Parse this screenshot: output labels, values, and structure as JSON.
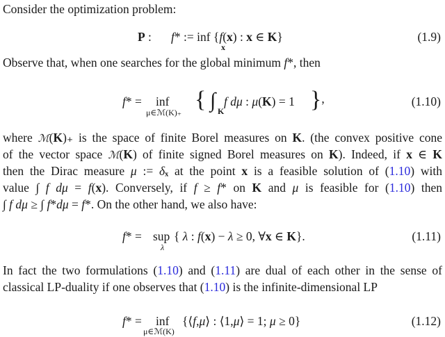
{
  "lines": {
    "l1": [
      [
        "",
        "Consider the optimization problem:"
      ]
    ],
    "l2": [
      [
        "",
        "Observe that, when one searches for the global minimum "
      ],
      [
        "i",
        "f"
      ],
      [
        "",
        "*, then"
      ]
    ],
    "p1": [
      [
        [
          "",
          "where "
        ],
        [
          "cal",
          "ℳ"
        ],
        [
          "",
          "("
        ],
        [
          "b",
          "K"
        ],
        [
          "",
          ")"
        ],
        [
          "",
          "₊ is the space of finite Borel measures on "
        ],
        [
          "b",
          "K"
        ],
        [
          "",
          ". (the convex positive cone"
        ]
      ],
      [
        [
          "",
          "of the vector space "
        ],
        [
          "cal",
          "ℳ"
        ],
        [
          "",
          "("
        ],
        [
          "b",
          "K"
        ],
        [
          "",
          ") of finite signed Borel measures on "
        ],
        [
          "b",
          "K"
        ],
        [
          "",
          "). Indeed, if "
        ],
        [
          "b",
          "x"
        ],
        [
          "",
          " ∈ "
        ],
        [
          "b",
          "K"
        ]
      ],
      [
        [
          "",
          "then the Dirac measure "
        ],
        [
          "i",
          "μ"
        ],
        [
          "",
          " := "
        ],
        [
          "i",
          "δ"
        ],
        [
          "b",
          "ₓ"
        ],
        [
          "",
          " at the point "
        ],
        [
          "b",
          "x"
        ],
        [
          "",
          " is a feasible solution of ("
        ],
        [
          "link",
          "1.10"
        ],
        [
          "",
          ") with"
        ]
      ],
      [
        [
          "",
          "value ∫ "
        ],
        [
          "i",
          "f dμ"
        ],
        [
          "",
          " = "
        ],
        [
          "i",
          "f"
        ],
        [
          "",
          "("
        ],
        [
          "b",
          "x"
        ],
        [
          "",
          "). Conversely, if "
        ],
        [
          "i",
          "f"
        ],
        [
          "",
          " ≥ "
        ],
        [
          "i",
          "f"
        ],
        [
          "",
          "* on "
        ],
        [
          "b",
          "K"
        ],
        [
          "",
          " and "
        ],
        [
          "i",
          "μ"
        ],
        [
          "",
          " is feasible for ("
        ],
        [
          "link",
          "1.10"
        ],
        [
          "",
          ") then"
        ]
      ],
      [
        [
          "",
          "∫ "
        ],
        [
          "i",
          "f dμ"
        ],
        [
          "",
          " ≥ ∫ "
        ],
        [
          "i",
          "f"
        ],
        [
          "",
          "*"
        ],
        [
          "i",
          "dμ"
        ],
        [
          "",
          " = "
        ],
        [
          "i",
          "f"
        ],
        [
          "",
          "*. On the other hand, we also have:"
        ]
      ]
    ],
    "p2": [
      [
        [
          "",
          "In fact the two formulations ("
        ],
        [
          "link",
          "1.10"
        ],
        [
          "",
          ") and ("
        ],
        [
          "link",
          "1.11"
        ],
        [
          "",
          ") are dual of each other in the sense of"
        ]
      ],
      [
        [
          "",
          "classical LP-duality if one observes that ("
        ],
        [
          "link",
          "1.10"
        ],
        [
          "",
          ") is the infinite-dimensional LP"
        ]
      ]
    ]
  },
  "equations": {
    "e19": {
      "lhs": "P",
      "colon": " :",
      "body": [
        [
          "i",
          "f"
        ],
        [
          "",
          "* := inf {"
        ],
        [
          "i",
          "f"
        ],
        [
          "",
          "("
        ],
        [
          "b",
          "x"
        ],
        [
          "",
          ") : "
        ],
        [
          "b",
          "x"
        ],
        [
          "",
          " ∈ "
        ],
        [
          "b",
          "K"
        ],
        [
          "",
          "}"
        ]
      ],
      "sub": "x",
      "label": "(1.9)"
    },
    "e110": {
      "body": [
        [
          "i",
          "f"
        ],
        [
          "",
          "* = "
        ]
      ],
      "op": "inf",
      "sub": "μ∈ℳ(K)₊",
      "rest": [
        [
          "i",
          " f dμ"
        ],
        [
          "",
          " : "
        ],
        [
          "i",
          "μ"
        ],
        [
          "",
          "("
        ],
        [
          "b",
          "K"
        ],
        [
          "",
          ") = 1"
        ]
      ],
      "intsub": "K",
      "label": "(1.10)"
    },
    "e111": {
      "body": [
        [
          "i",
          "f"
        ],
        [
          "",
          "* = "
        ]
      ],
      "op": "sup",
      "sub": "λ",
      "rest": [
        [
          "",
          "{ "
        ],
        [
          "i",
          "λ"
        ],
        [
          "",
          " : "
        ],
        [
          "i",
          "f"
        ],
        [
          "",
          "("
        ],
        [
          "b",
          "x"
        ],
        [
          "",
          ") − "
        ],
        [
          "i",
          "λ"
        ],
        [
          "",
          " ≥ 0,    ∀"
        ],
        [
          "b",
          "x"
        ],
        [
          "",
          " ∈ "
        ],
        [
          "b",
          "K"
        ],
        [
          "",
          "}."
        ]
      ],
      "label": "(1.11)"
    },
    "e112": {
      "body": [
        [
          "i",
          "f"
        ],
        [
          "",
          "* = "
        ]
      ],
      "op": "inf",
      "sub": "μ∈ℳ(K)",
      "rest": [
        [
          "",
          "{⟨"
        ],
        [
          "i",
          "f"
        ],
        [
          "",
          ","
        ],
        [
          "i",
          "μ"
        ],
        [
          "",
          "⟩ : ⟨1,"
        ],
        [
          "i",
          "μ"
        ],
        [
          "",
          "⟩ = 1;    "
        ],
        [
          "i",
          "μ"
        ],
        [
          "",
          " ≥ 0}"
        ]
      ],
      "label": "(1.12)"
    }
  },
  "colors": {
    "text": "#1a1a1a",
    "link": "#2b2bdc"
  }
}
